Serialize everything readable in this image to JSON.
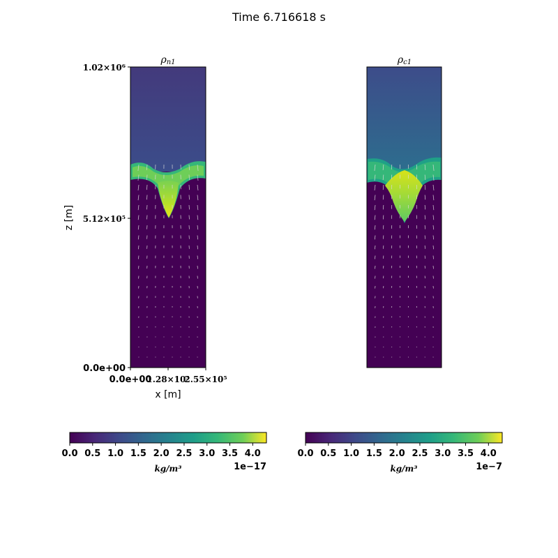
{
  "figure": {
    "title": "Time 6.716618 s"
  },
  "chart_data": [
    {
      "type": "heatmap",
      "title": "ρn1",
      "title_base": "ρ",
      "title_sub": "n1",
      "xlabel": "x [m]",
      "ylabel": "z [m]",
      "xlim": [
        0,
        255000
      ],
      "ylim": [
        0,
        1020000
      ],
      "xticks": [
        {
          "value": 0,
          "label": "0.0e+00"
        },
        {
          "value": 128000,
          "label": "1.28×10⁵"
        },
        {
          "value": 255000,
          "label": "2.55×10⁵"
        }
      ],
      "yticks": [
        {
          "value": 0,
          "label": "0.0e+00"
        },
        {
          "value": 512000,
          "label": "5.12×10⁵"
        },
        {
          "value": 1020000,
          "label": "1.02×10⁶"
        }
      ],
      "background_upper": "#3b528b",
      "background_lower": "#440154",
      "interface_height": 650000,
      "interface_band_color": "#5ec962",
      "finger_tip_height": 500000,
      "vectors": true,
      "colorbar": {
        "min": 0.0,
        "max": 4.3,
        "ticks": [
          "0.0",
          "0.5",
          "1.0",
          "1.5",
          "2.0",
          "2.5",
          "3.0",
          "3.5",
          "4.0"
        ],
        "tick_values": [
          0.0,
          0.5,
          1.0,
          1.5,
          2.0,
          2.5,
          3.0,
          3.5,
          4.0
        ],
        "unit": "kg/m³",
        "offset": "1e−17",
        "colormap": "viridis"
      }
    },
    {
      "type": "heatmap",
      "title": "ρc1",
      "title_base": "ρ",
      "title_sub": "c1",
      "xlim": [
        0,
        255000
      ],
      "ylim": [
        0,
        1020000
      ],
      "background_upper": "#3b528b",
      "background_lower": "#440154",
      "interface_height": 650000,
      "interface_band_color": "#21918c",
      "finger_tip_height": 490000,
      "vectors": true,
      "colorbar": {
        "min": 0.0,
        "max": 4.3,
        "ticks": [
          "0.0",
          "0.5",
          "1.0",
          "1.5",
          "2.0",
          "2.5",
          "3.0",
          "3.5",
          "4.0"
        ],
        "tick_values": [
          0.0,
          0.5,
          1.0,
          1.5,
          2.0,
          2.5,
          3.0,
          3.5,
          4.0
        ],
        "unit": "kg/m³",
        "offset": "1e−7",
        "colormap": "viridis"
      }
    }
  ]
}
